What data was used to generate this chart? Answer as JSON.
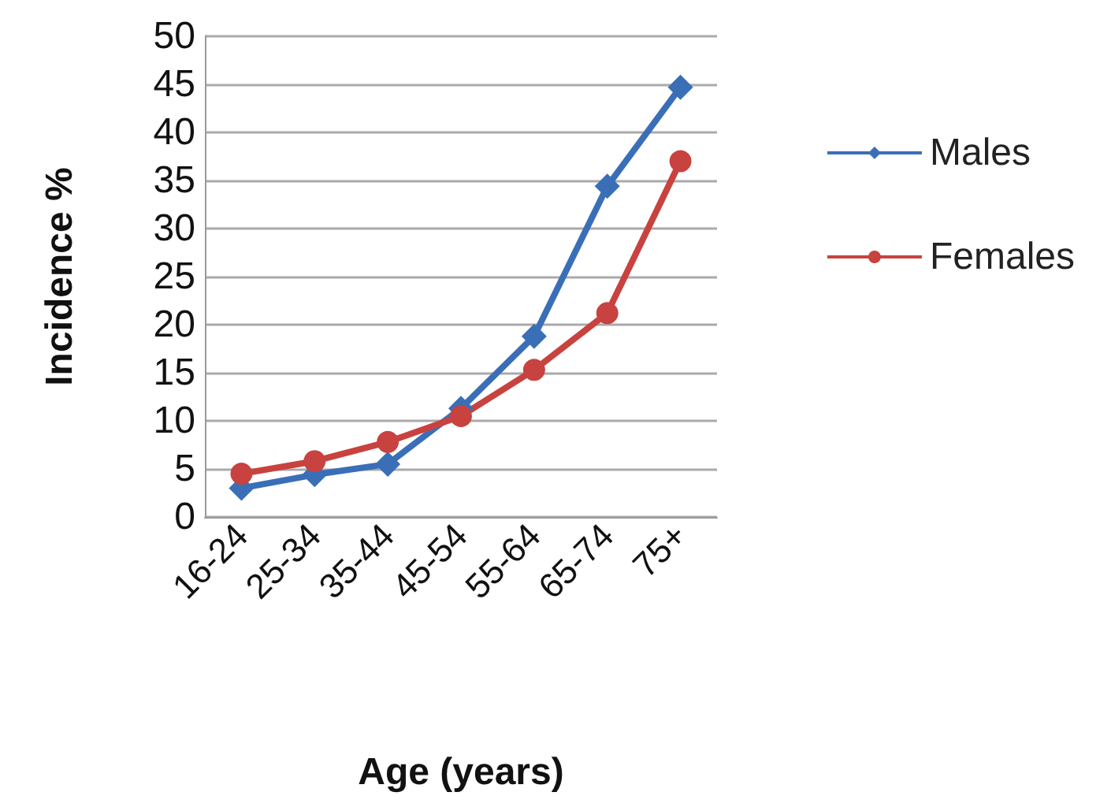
{
  "chart_data": {
    "type": "line",
    "xlabel": "Age (years)",
    "ylabel": "Incidence %",
    "categories": [
      "16-24",
      "25-34",
      "35-44",
      "45-54",
      "55-64",
      "65-74",
      "75+"
    ],
    "series": [
      {
        "name": "Males",
        "color": "#3a6fb8",
        "marker": "diamond",
        "values": [
          3,
          4.4,
          5.5,
          11.3,
          18.8,
          34.4,
          44.7
        ]
      },
      {
        "name": "Females",
        "color": "#c8423f",
        "marker": "circle",
        "values": [
          4.5,
          5.8,
          7.8,
          10.5,
          15.3,
          21.2,
          37
        ]
      }
    ],
    "ylim": [
      0,
      50
    ],
    "yticks": [
      0,
      5,
      10,
      15,
      20,
      25,
      30,
      35,
      40,
      45,
      50
    ],
    "grid": "y",
    "legend": "right",
    "line_style": "solid"
  }
}
